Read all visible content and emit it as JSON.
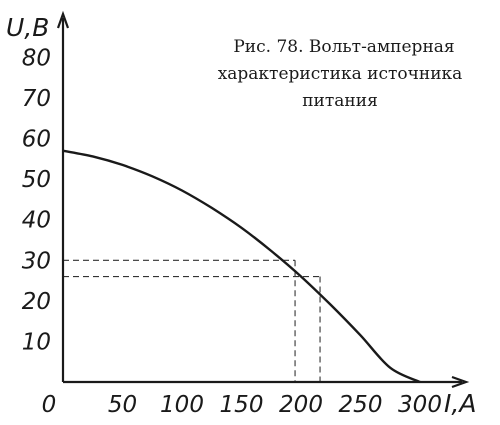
{
  "caption": {
    "line1": "Рис. 78. Вольт-амперная",
    "line2": "характеристика источника",
    "line3": "питания"
  },
  "chart_data": {
    "type": "line",
    "title": "Рис. 78. Вольт-амперная характеристика источника питания",
    "xlabel": "I,A",
    "ylabel": "U,B",
    "xlim": [
      0,
      300
    ],
    "ylim": [
      0,
      80
    ],
    "x_ticks": [
      "0",
      "50",
      "100",
      "150",
      "200",
      "250",
      "300"
    ],
    "y_ticks": [
      "10",
      "20",
      "30",
      "40",
      "50",
      "60",
      "70",
      "80"
    ],
    "grid": false,
    "series": [
      {
        "x": [
          0,
          25,
          50,
          75,
          100,
          125,
          150,
          175,
          200,
          225,
          250,
          275,
          300
        ],
        "y": [
          57,
          55.6,
          53.5,
          50.7,
          47.2,
          42.9,
          38,
          32.3,
          26,
          19,
          11.5,
          3.5,
          0
        ]
      }
    ],
    "reference_points": [
      {
        "x": 195,
        "y": 30
      },
      {
        "x": 216,
        "y": 26
      }
    ]
  }
}
